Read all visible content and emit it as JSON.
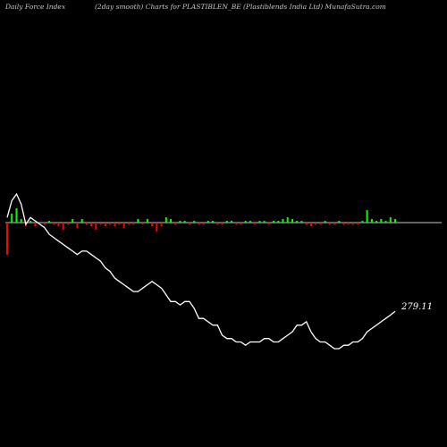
{
  "header": {
    "left": "Daily Force  Index",
    "center": "(2day smooth) Charts for PLASTIBLEN_BE",
    "right": "(Plastiblends India  Ltd) MunafaSutra.com"
  },
  "colors": {
    "background": "#000000",
    "line": "#ffffff",
    "positive": "#00ff00",
    "negative": "#ff0000",
    "zero_line": "#c8c8c8"
  },
  "chart_data": {
    "type": "line",
    "end_label": "279.11",
    "price": [
      307,
      312,
      314,
      311,
      305,
      307,
      306,
      305,
      304,
      302,
      301,
      300,
      299,
      298,
      297,
      296,
      297,
      297,
      296,
      295,
      294,
      292,
      291,
      289,
      288,
      287,
      286,
      285,
      285,
      286,
      287,
      288,
      287,
      286,
      284,
      282,
      282,
      281,
      282,
      282,
      280,
      277,
      277,
      276,
      275,
      275,
      272,
      271,
      271,
      270,
      270,
      269,
      270,
      270,
      270,
      271,
      271,
      270,
      270,
      271,
      272,
      273,
      275,
      275,
      276,
      273,
      271,
      270,
      270,
      269,
      268,
      268,
      269,
      269,
      270,
      270,
      271,
      273,
      274,
      275,
      276,
      277,
      278,
      279.11
    ],
    "force_index": [
      -18,
      5,
      8,
      2,
      -2,
      1,
      -2,
      -1,
      -1,
      1,
      -1,
      -2,
      -4,
      -1,
      2,
      -3,
      2,
      -1,
      -2,
      -4,
      -1,
      -2,
      -1,
      -2,
      -1,
      -3,
      -1,
      -1,
      2,
      -1,
      2,
      -2,
      -5,
      -2,
      3,
      2,
      -1,
      1,
      1,
      -1,
      1,
      -1,
      -1,
      1,
      1,
      -1,
      -1,
      1,
      1,
      -1,
      -1,
      1,
      1,
      -1,
      1,
      1,
      -1,
      1,
      1,
      2,
      3,
      2,
      1,
      1,
      -1,
      -2,
      -1,
      -1,
      1,
      -1,
      -1,
      1,
      -1,
      -1,
      -1,
      -1,
      1,
      7,
      2,
      1,
      2,
      1,
      3,
      2
    ]
  }
}
